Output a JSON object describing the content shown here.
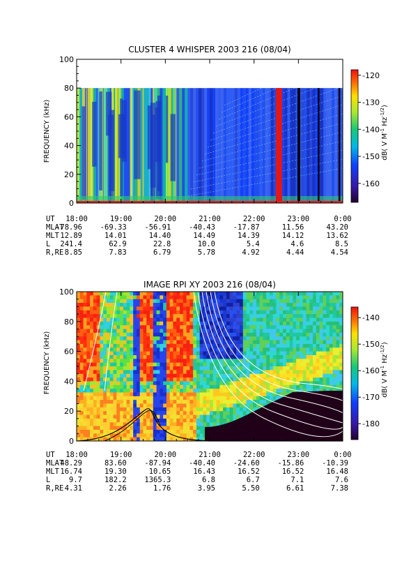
{
  "chart_data": [
    {
      "type": "heatmap",
      "title": "CLUSTER 4 WHISPER 2003 216 (08/04)",
      "ylabel": "FREQUENCY (kHz)",
      "ylim": [
        0,
        100
      ],
      "yticks": [
        "0",
        "20",
        "40",
        "60",
        "80",
        "100"
      ],
      "xlim": [
        "18:00",
        "0:00"
      ],
      "xticks": [
        "18:00",
        "19:00",
        "20:00",
        "21:00",
        "22:00",
        "23:00",
        "0:00"
      ],
      "colorbar": {
        "label": "dB( V M⁻¹ Hz⁻¹ᐟ²)",
        "label_parts": [
          "dB( V M",
          "-1",
          " Hz",
          "-1/2",
          ")"
        ],
        "range": [
          -167,
          -118
        ],
        "ticks": [
          "-120",
          "-130",
          "-140",
          "-150",
          "-160"
        ]
      },
      "ephemeris": {
        "labels": [
          "UT",
          "MLAT",
          "MLT",
          "L",
          "R,RE"
        ],
        "rows": [
          [
            "18:00",
            "19:00",
            "20:00",
            "21:00",
            "22:00",
            "23:00",
            "0:00"
          ],
          [
            "-78.96",
            "-69.33",
            "-56.91",
            "-40.43",
            "-17.87",
            "11.56",
            "43.20"
          ],
          [
            "12.89",
            "14.01",
            "14.40",
            "14.49",
            "14.39",
            "14.12",
            "13.62"
          ],
          [
            "241.4",
            "62.9",
            "22.8",
            "10.0",
            "5.4",
            "4.6",
            "8.5"
          ],
          [
            "8.85",
            "7.83",
            "6.79",
            "5.78",
            "4.92",
            "4.44",
            "4.54"
          ]
        ]
      }
    },
    {
      "type": "heatmap",
      "title": "IMAGE RPI XY 2003 216 (08/04)",
      "ylabel": "FREQUENCY (kHz)",
      "ylim": [
        0,
        100
      ],
      "yticks": [
        "0",
        "20",
        "40",
        "60",
        "80",
        "100"
      ],
      "xlim": [
        "18:00",
        "0:00"
      ],
      "xticks": [
        "18:00",
        "19:00",
        "20:00",
        "21:00",
        "22:00",
        "23:00",
        "0:00"
      ],
      "colorbar": {
        "label": "dB( V M⁻¹ Hz⁻¹ᐟ²)",
        "label_parts": [
          "dB( V M",
          "-1",
          " Hz",
          "-1/2",
          ")"
        ],
        "range": [
          -186,
          -136
        ],
        "ticks": [
          "-140",
          "-150",
          "-160",
          "-170",
          "-180"
        ]
      },
      "ephemeris": {
        "labels": [
          "UT",
          "MLAT",
          "MLT",
          "L",
          "R,RE"
        ],
        "rows": [
          [
            "18:00",
            "19:00",
            "20:00",
            "21:00",
            "22:00",
            "23:00",
            "0:00"
          ],
          [
            "48.29",
            "83.60",
            "-87.94",
            "-40.40",
            "-24.60",
            "-15.86",
            "-10.39"
          ],
          [
            "16.74",
            "19.30",
            "10.65",
            "16.43",
            "16.52",
            "16.52",
            "16.48"
          ],
          [
            "9.7",
            "182.2",
            "1365.3",
            "6.8",
            "6.7",
            "7.1",
            "7.6"
          ],
          [
            "4.31",
            "2.26",
            "1.76",
            "3.95",
            "5.50",
            "6.61",
            "7.38"
          ]
        ]
      }
    }
  ]
}
